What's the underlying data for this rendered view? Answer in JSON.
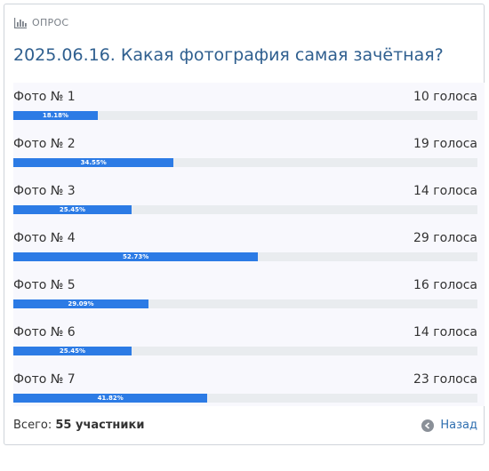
{
  "header": {
    "label": "ОПРОС",
    "icon": "bar-chart-icon"
  },
  "title": "2025.06.16. Какая фотография самая зачётная?",
  "options": [
    {
      "label": "Фото № 1",
      "votes": "10 голоса",
      "percent_label": "18.18%",
      "percent": 18.18
    },
    {
      "label": "Фото № 2",
      "votes": "19 голоса",
      "percent_label": "34.55%",
      "percent": 34.55
    },
    {
      "label": "Фото № 3",
      "votes": "14 голоса",
      "percent_label": "25.45%",
      "percent": 25.45
    },
    {
      "label": "Фото № 4",
      "votes": "29 голоса",
      "percent_label": "52.73%",
      "percent": 52.73
    },
    {
      "label": "Фото № 5",
      "votes": "16 голоса",
      "percent_label": "29.09%",
      "percent": 29.09
    },
    {
      "label": "Фото № 6",
      "votes": "14 голоса",
      "percent_label": "25.45%",
      "percent": 25.45
    },
    {
      "label": "Фото № 7",
      "votes": "23 голоса",
      "percent_label": "41.82%",
      "percent": 41.82
    }
  ],
  "footer": {
    "total_prefix": "Всего: ",
    "total_value": "55 участники",
    "back_label": "Назад",
    "back_icon": "arrow-left-circle-icon"
  },
  "colors": {
    "bar": "#2c7be5",
    "track": "#e9ecef",
    "title": "#2f5f8f",
    "link": "#2f6fb0"
  }
}
